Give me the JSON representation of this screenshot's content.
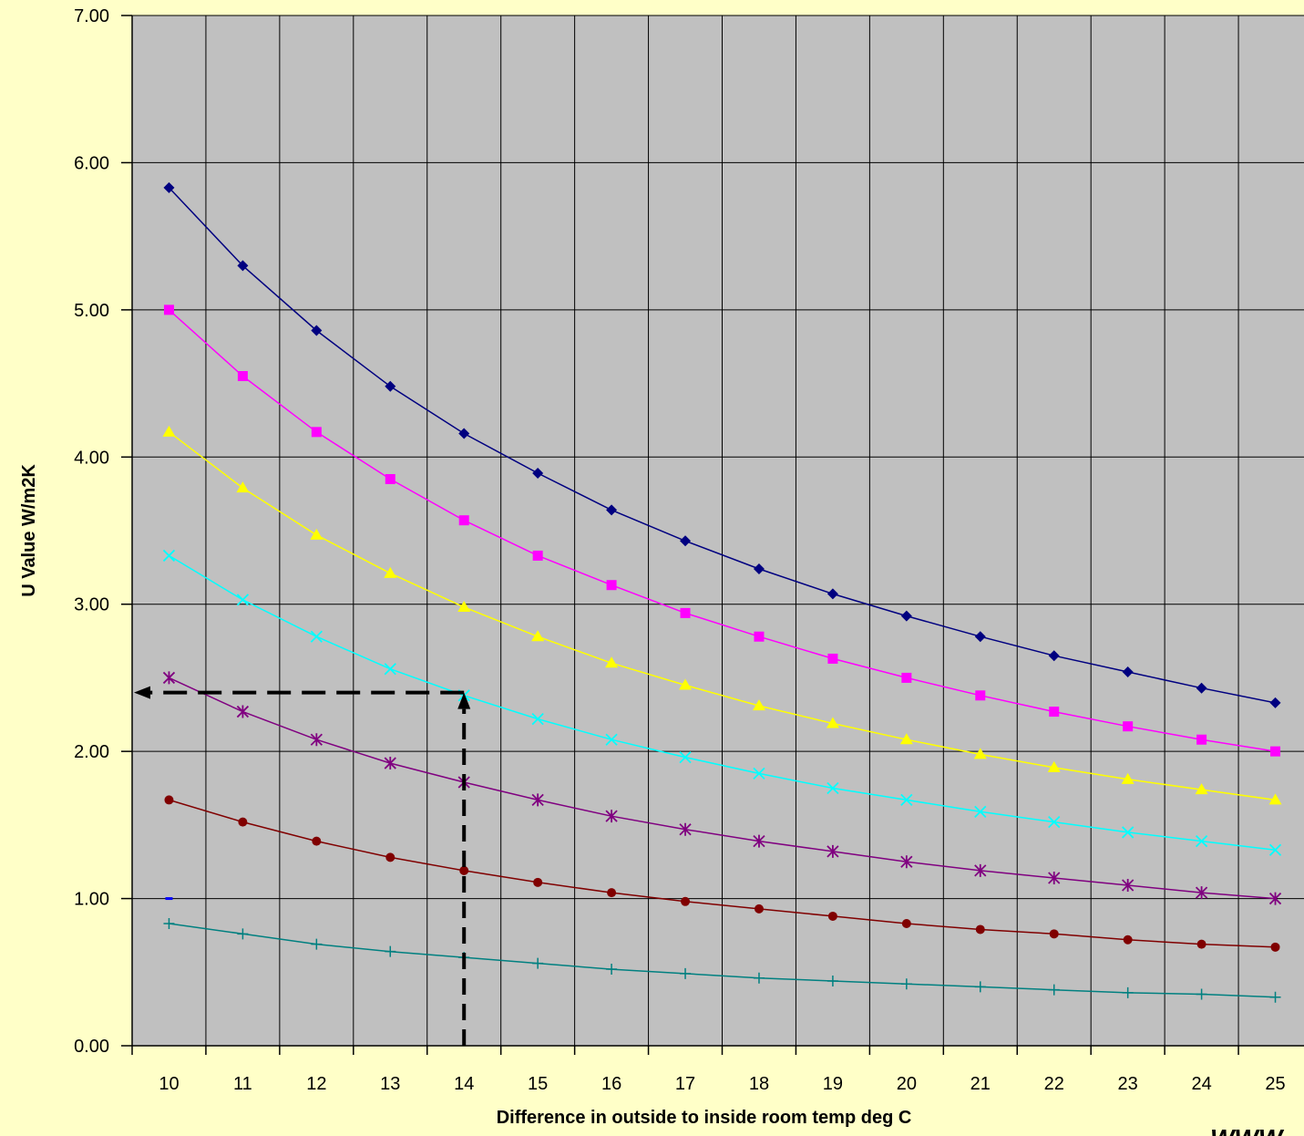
{
  "chart_data": {
    "type": "line",
    "xlabel": "Difference in outside to inside  room temp deg C",
    "ylabel": "U Value W/m2K",
    "x": [
      10,
      11,
      12,
      13,
      14,
      15,
      16,
      17,
      18,
      19,
      20,
      21,
      22,
      23,
      24,
      25
    ],
    "x_tick_labels": [
      "10",
      "11",
      "12",
      "13",
      "14",
      "15",
      "16",
      "17",
      "18",
      "19",
      "20",
      "21",
      "22",
      "23",
      "24",
      "25"
    ],
    "ylim": [
      0,
      7
    ],
    "y_ticks": [
      0,
      1,
      2,
      3,
      4,
      5,
      6,
      7
    ],
    "y_tick_labels": [
      "0.00",
      "1.00",
      "2.00",
      "3.00",
      "4.00",
      "5.00",
      "6.00",
      "7.00"
    ],
    "grid": true,
    "plot_background": "#c0c0c0",
    "page_background": "#ffffc8",
    "series": [
      {
        "color": "#000080",
        "marker": "diamond",
        "values": [
          5.83,
          5.3,
          4.86,
          4.48,
          4.16,
          3.89,
          3.64,
          3.43,
          3.24,
          3.07,
          2.92,
          2.78,
          2.65,
          2.54,
          2.43,
          2.33
        ]
      },
      {
        "color": "#ff00ff",
        "marker": "square",
        "values": [
          5.0,
          4.55,
          4.17,
          3.85,
          3.57,
          3.33,
          3.13,
          2.94,
          2.78,
          2.63,
          2.5,
          2.38,
          2.27,
          2.17,
          2.08,
          2.0
        ]
      },
      {
        "color": "#ffff00",
        "marker": "triangle",
        "values": [
          4.17,
          3.79,
          3.47,
          3.21,
          2.98,
          2.78,
          2.6,
          2.45,
          2.31,
          2.19,
          2.08,
          1.98,
          1.89,
          1.81,
          1.74,
          1.67
        ]
      },
      {
        "color": "#00ffff",
        "marker": "x",
        "values": [
          3.33,
          3.03,
          2.78,
          2.56,
          2.38,
          2.22,
          2.08,
          1.96,
          1.85,
          1.75,
          1.67,
          1.59,
          1.52,
          1.45,
          1.39,
          1.33
        ]
      },
      {
        "color": "#800080",
        "marker": "star",
        "values": [
          2.5,
          2.27,
          2.08,
          1.92,
          1.79,
          1.67,
          1.56,
          1.47,
          1.39,
          1.32,
          1.25,
          1.19,
          1.14,
          1.09,
          1.04,
          1.0
        ]
      },
      {
        "color": "#800000",
        "marker": "circle",
        "values": [
          1.67,
          1.52,
          1.39,
          1.28,
          1.19,
          1.11,
          1.04,
          0.98,
          0.93,
          0.88,
          0.83,
          0.79,
          0.76,
          0.72,
          0.69,
          0.67
        ]
      },
      {
        "color": "#008080",
        "marker": "plus",
        "values": [
          0.83,
          0.76,
          0.69,
          0.64,
          0.6,
          0.56,
          0.52,
          0.49,
          0.46,
          0.44,
          0.42,
          0.4,
          0.38,
          0.36,
          0.35,
          0.33
        ]
      }
    ],
    "stray_mark": {
      "x": 10,
      "y": 1.0,
      "color": "#0000ff"
    },
    "annotation": {
      "type": "dashed-arrows",
      "color": "#000000",
      "from_x": 14,
      "to_y": 2.4,
      "description_x_value": 14,
      "description_y_value": 2.4
    },
    "partial_text": "WWW"
  }
}
